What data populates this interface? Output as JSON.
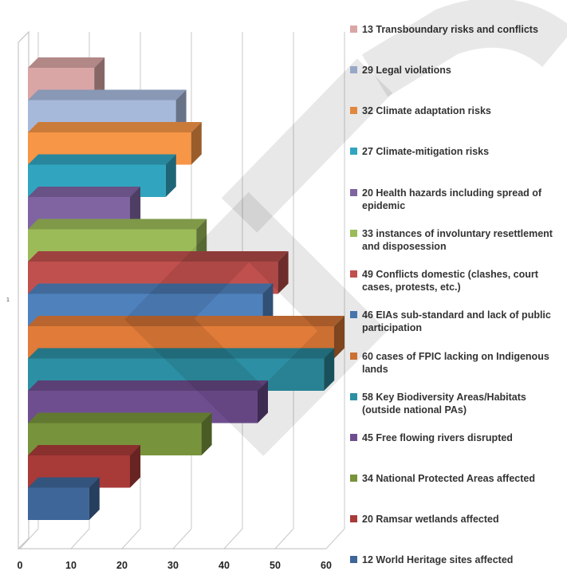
{
  "chart_data": {
    "type": "bar",
    "orientation": "horizontal",
    "style": "3d",
    "category_label": "1",
    "series": [
      {
        "name": "13 Transboundary risks and conflicts",
        "value": 13,
        "color": "#D9A6A5"
      },
      {
        "name": "29 Legal violations",
        "value": 29,
        "color": "#A7B9DB"
      },
      {
        "name": "32 Climate adaptation risks",
        "value": 32,
        "color": "#F79646"
      },
      {
        "name": "27 Climate-mitigation risks",
        "value": 27,
        "color": "#31A5C0"
      },
      {
        "name": "20 Health hazards including spread of epidemic",
        "value": 20,
        "color": "#8064A2"
      },
      {
        "name": "33 instances of  involuntary resettlement and disposession",
        "value": 33,
        "color": "#9BBB59"
      },
      {
        "name": "49 Conflicts domestic (clashes, court cases, protests,  etc.)",
        "value": 49,
        "color": "#C0504D"
      },
      {
        "name": " 46 EIAs sub-standard and lack of public participation",
        "value": 46,
        "color": "#4F81BD"
      },
      {
        "name": "60 cases of  FPIC lacking on Indigenous lands",
        "value": 60,
        "color": "#E07B39"
      },
      {
        "name": "58 Key Biodiversity Areas/Habitats (outside national PAs)",
        "value": 58,
        "color": "#2C8FA3"
      },
      {
        "name": "45 Free flowing rivers disrupted",
        "value": 45,
        "color": "#6F4E8F"
      },
      {
        "name": "34 National Protected Areas affected",
        "value": 34,
        "color": "#77933C"
      },
      {
        "name": "20 Ramsar wetlands affected",
        "value": 20,
        "color": "#A83A38"
      },
      {
        "name": "12 World Heritage sites affected",
        "value": 12,
        "color": "#3E6699"
      }
    ],
    "xlim": [
      0,
      60
    ],
    "xticks": [
      "0",
      "10",
      "20",
      "30",
      "40",
      "50",
      "60"
    ],
    "grid": true,
    "legend_position": "right"
  }
}
